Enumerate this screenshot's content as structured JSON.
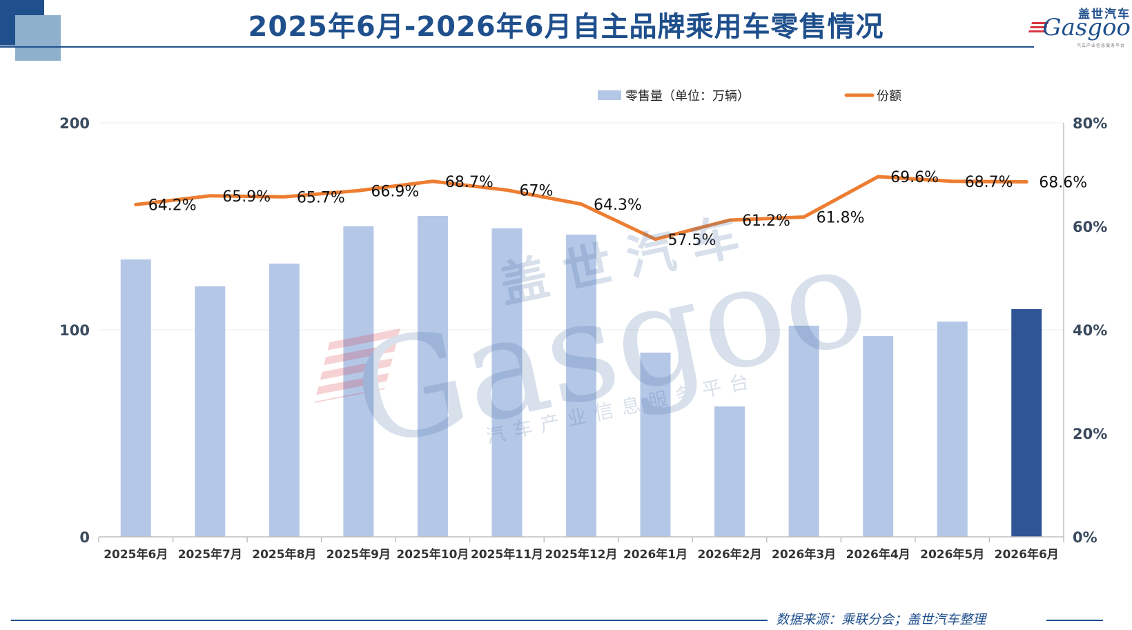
{
  "header": {
    "title": "2025年6月-2026年6月自主品牌乘用车零售情况"
  },
  "logo": {
    "cn": "盖世汽车",
    "en": "Gasgoo",
    "sub": "汽车产业信息服务平台"
  },
  "watermark": {
    "cn": "盖世汽车",
    "en": "Gasgoo",
    "sub": "汽车产业信息服务平台"
  },
  "footer": {
    "source": "数据来源：乘联分会；盖世汽车整理"
  },
  "colors": {
    "bar": "#b4c7e7",
    "bar_highlight": "#2f5597",
    "line": "#ed7d31",
    "title": "#1f4f8c"
  },
  "chart_data": {
    "type": "bar+line",
    "categories": [
      "2025年6月",
      "2025年7月",
      "2025年8月",
      "2025年9月",
      "2025年10月",
      "2025年11月",
      "2025年12月",
      "2026年1月",
      "2026年2月",
      "2026年3月",
      "2026年4月",
      "2026年5月",
      "2026年6月"
    ],
    "series": [
      {
        "name": "零售量（单位：万辆）",
        "type": "bar",
        "axis": "left",
        "values": [
          134,
          121,
          132,
          150,
          155,
          149,
          146,
          89,
          63,
          102,
          97,
          104,
          110
        ],
        "highlight_index": 12
      },
      {
        "name": "份额",
        "type": "line",
        "axis": "right",
        "values": [
          64.2,
          65.9,
          65.7,
          66.9,
          68.7,
          67,
          64.3,
          57.5,
          61.2,
          61.8,
          69.6,
          68.7,
          68.6
        ],
        "labels": [
          "64.2%",
          "65.9%",
          "65.7%",
          "66.9%",
          "68.7%",
          "67%",
          "64.3%",
          "57.5%",
          "61.2%",
          "61.8%",
          "69.6%",
          "68.7%",
          "68.6%"
        ]
      }
    ],
    "y_left": {
      "ylim": [
        0,
        200
      ],
      "ticks": [
        "0",
        "100",
        "200"
      ]
    },
    "y_right": {
      "ylim": [
        0,
        80
      ],
      "ticks": [
        "0%",
        "20%",
        "40%",
        "60%",
        "80%"
      ]
    },
    "legend": {
      "position": "top-right"
    },
    "grid": true
  }
}
